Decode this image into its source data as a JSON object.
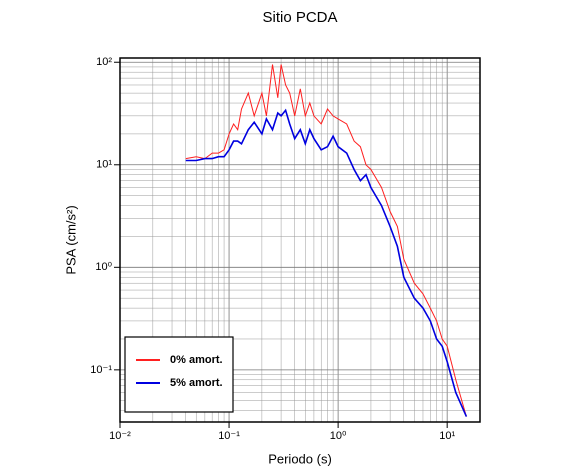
{
  "chart_data": {
    "type": "line",
    "title": "Sitio PCDA",
    "xlabel": "Periodo (s)",
    "ylabel": "PSA (cm/s²)",
    "xscale": "log",
    "yscale": "log",
    "grid": true,
    "legend": "lower left",
    "xlim": [
      0.01,
      20
    ],
    "ylim": [
      0.031,
      110
    ],
    "xticks": [
      {
        "value": 0.01,
        "label": "10⁻²"
      },
      {
        "value": 0.1,
        "label": "10⁻¹"
      },
      {
        "value": 1,
        "label": "10⁰"
      },
      {
        "value": 10,
        "label": "10¹"
      }
    ],
    "yticks": [
      {
        "value": 0.1,
        "label": "10⁻¹"
      },
      {
        "value": 1,
        "label": "10⁰"
      },
      {
        "value": 10,
        "label": "10¹"
      },
      {
        "value": 100,
        "label": "10²"
      }
    ],
    "x": [
      0.04,
      0.05,
      0.06,
      0.07,
      0.08,
      0.09,
      0.1,
      0.11,
      0.12,
      0.13,
      0.15,
      0.17,
      0.2,
      0.22,
      0.25,
      0.28,
      0.3,
      0.33,
      0.36,
      0.4,
      0.45,
      0.5,
      0.55,
      0.6,
      0.7,
      0.8,
      0.9,
      1.0,
      1.2,
      1.4,
      1.6,
      1.8,
      2.0,
      2.5,
      3.0,
      3.5,
      4.0,
      5.0,
      6.0,
      7.0,
      8.0,
      9.0,
      10,
      12,
      15
    ],
    "series": [
      {
        "name": "0% amort.",
        "color": "#ff2020",
        "width": 1,
        "values": [
          11.5,
          12,
          11.5,
          13,
          13,
          14,
          20,
          25,
          22,
          35,
          50,
          30,
          50,
          30,
          95,
          45,
          95,
          60,
          50,
          30,
          55,
          30,
          40,
          30,
          25,
          35,
          30,
          28,
          25,
          17,
          15,
          10,
          9,
          6,
          3.5,
          2.5,
          1.2,
          0.7,
          0.55,
          0.4,
          0.3,
          0.2,
          0.17,
          0.08,
          0.035
        ]
      },
      {
        "name": "5% amort.",
        "color": "#0000e0",
        "width": 1.6,
        "values": [
          11,
          11,
          11.5,
          11.5,
          12,
          12,
          14,
          17,
          17,
          16,
          22,
          26,
          20,
          28,
          22,
          32,
          30,
          34,
          25,
          18,
          22,
          16,
          22,
          18,
          14,
          15,
          19,
          15,
          13,
          9,
          7,
          8,
          6,
          4,
          2.5,
          1.6,
          0.8,
          0.5,
          0.4,
          0.3,
          0.2,
          0.17,
          0.12,
          0.06,
          0.035
        ]
      }
    ]
  }
}
